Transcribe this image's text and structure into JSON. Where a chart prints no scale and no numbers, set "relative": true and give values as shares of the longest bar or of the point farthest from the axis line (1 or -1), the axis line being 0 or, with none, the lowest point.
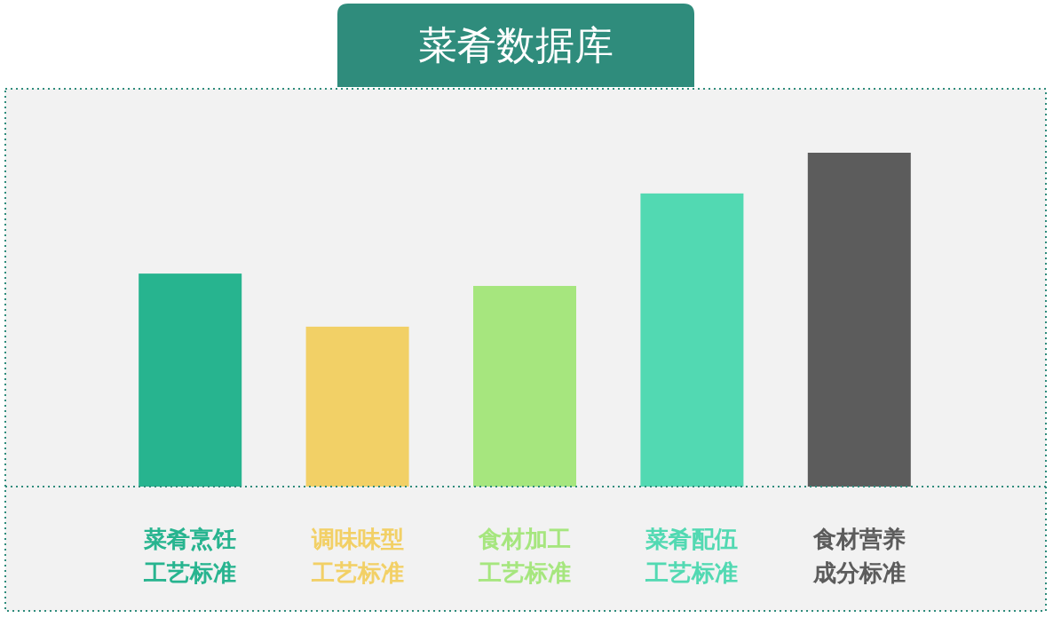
{
  "chart_data": {
    "type": "bar",
    "title": "菜肴数据库",
    "relative": true,
    "categories": [
      "菜肴烹饪工艺标准",
      "调味味型工艺标准",
      "食材加工工艺标准",
      "菜肴配伍工艺标准",
      "食材营养成分标准"
    ],
    "values": [
      0.638,
      0.479,
      0.601,
      0.878,
      1
    ],
    "colors": [
      "#27b48f",
      "#f2d066",
      "#a6e67e",
      "#52d9b2",
      "#5c5c5c"
    ]
  }
}
